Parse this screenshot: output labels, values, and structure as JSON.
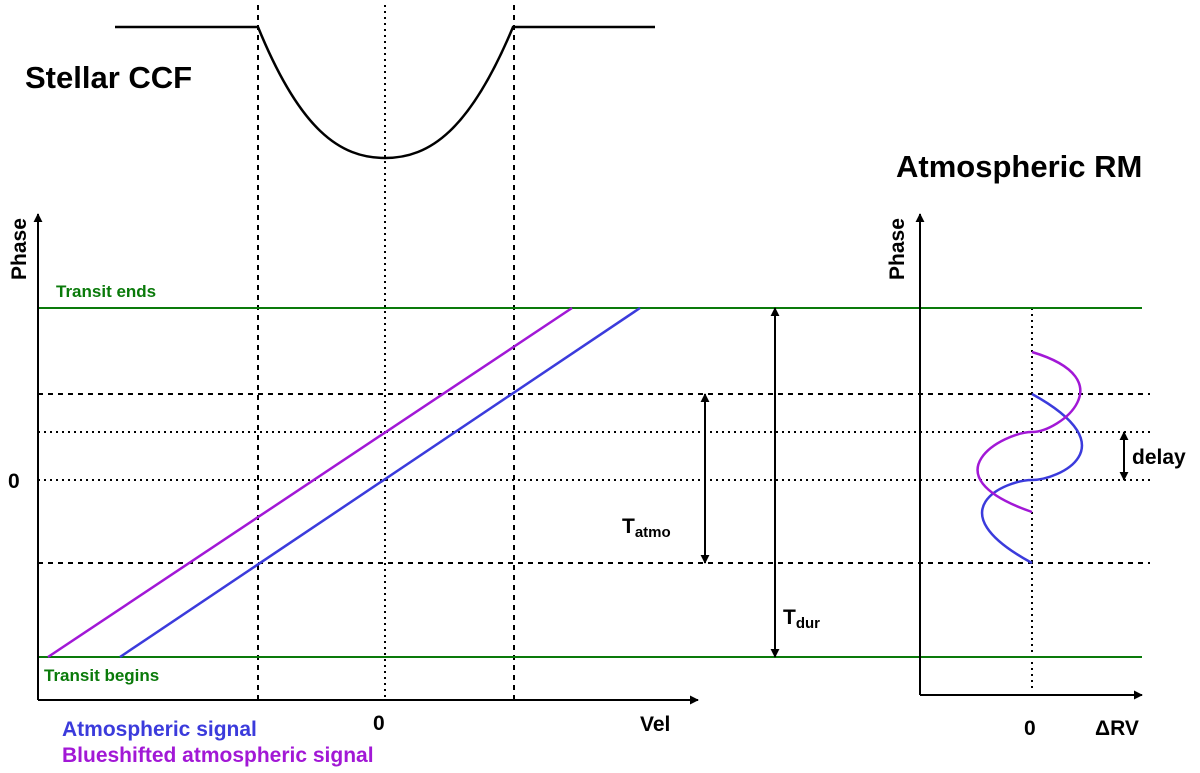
{
  "titles": {
    "stellar_ccf": "Stellar CCF",
    "atmospheric_rm": "Atmospheric RM"
  },
  "left_panel": {
    "y_axis_label": "Phase",
    "x_axis_label": "Vel",
    "y_zero_tick": "0",
    "x_zero_tick": "0",
    "transit_ends": "Transit ends",
    "transit_begins": "Transit begins"
  },
  "right_panel": {
    "y_axis_label": "Phase",
    "x_axis_label": "ΔRV",
    "x_zero_tick": "0",
    "delay_label": "delay"
  },
  "durations": {
    "t_atmo_main": "T",
    "t_atmo_sub": "atmo",
    "t_dur_main": "T",
    "t_dur_sub": "dur"
  },
  "legend": {
    "atmospheric_signal": "Atmospheric signal",
    "blueshifted_signal": "Blueshifted atmospheric signal"
  },
  "colors": {
    "atmospheric_signal": "#3b3bdc",
    "blueshifted_signal": "#a218d6",
    "transit_lines": "#0a7a0a",
    "axes": "#000000"
  }
}
